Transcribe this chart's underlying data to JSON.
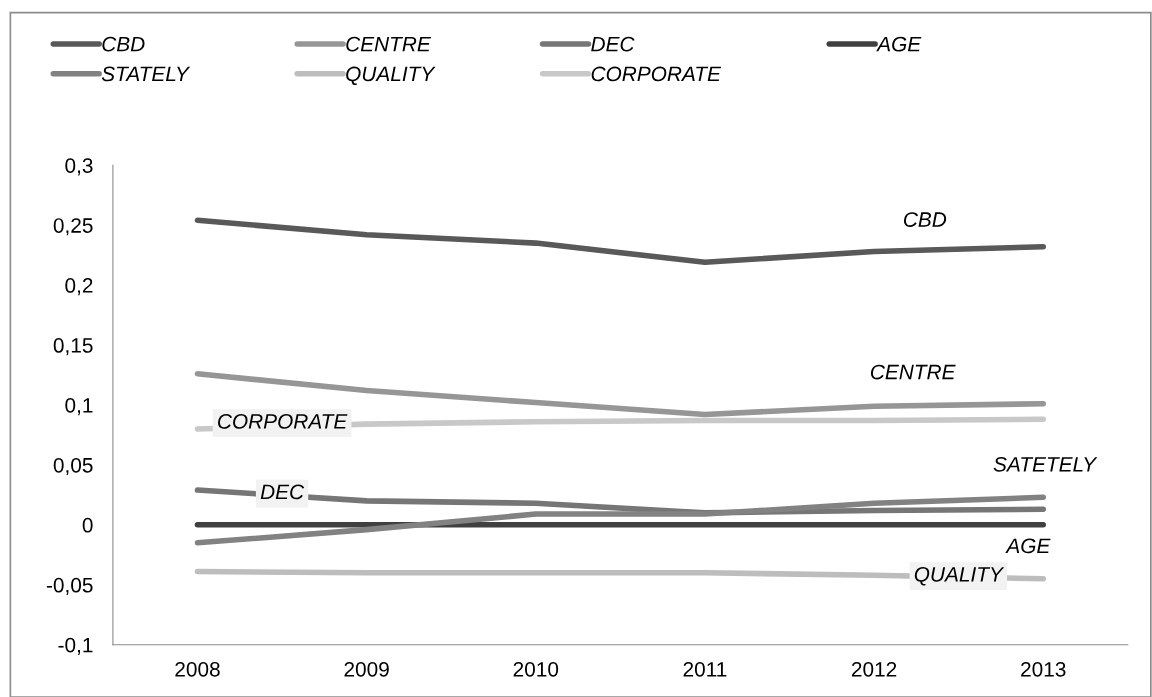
{
  "chart_data": {
    "type": "line",
    "categories": [
      "2008",
      "2009",
      "2010",
      "2011",
      "2012",
      "2013"
    ],
    "series": [
      {
        "name": "CBD",
        "color": "#595959",
        "values": [
          0.254,
          0.242,
          0.235,
          0.219,
          0.228,
          0.232
        ]
      },
      {
        "name": "CENTRE",
        "color": "#969696",
        "values": [
          0.126,
          0.112,
          0.102,
          0.092,
          0.099,
          0.101
        ]
      },
      {
        "name": "DEC",
        "color": "#767676",
        "values": [
          0.029,
          0.02,
          0.018,
          0.01,
          0.012,
          0.013
        ]
      },
      {
        "name": "AGE",
        "color": "#404040",
        "values": [
          0,
          0,
          0,
          0,
          0,
          0
        ]
      },
      {
        "name": "STATELY",
        "color": "#828282",
        "values": [
          -0.015,
          -0.004,
          0.009,
          0.009,
          0.018,
          0.023
        ]
      },
      {
        "name": "QUALITY",
        "color": "#bdbdbd",
        "values": [
          -0.039,
          -0.04,
          -0.04,
          -0.04,
          -0.042,
          -0.045
        ]
      },
      {
        "name": "CORPORATE",
        "color": "#c8c8c8",
        "values": [
          0.08,
          0.084,
          0.086,
          0.087,
          0.087,
          0.088
        ]
      }
    ],
    "ylim": [
      -0.1,
      0.3
    ],
    "yticks": [
      {
        "value": -0.1,
        "label": "-0,1"
      },
      {
        "value": -0.05,
        "label": "-0,05"
      },
      {
        "value": 0,
        "label": "0"
      },
      {
        "value": 0.05,
        "label": "0,05"
      },
      {
        "value": 0.1,
        "label": "0,1"
      },
      {
        "value": 0.15,
        "label": "0,15"
      },
      {
        "value": 0.2,
        "label": "0,2"
      },
      {
        "value": 0.25,
        "label": "0,25"
      },
      {
        "value": 0.3,
        "label": "0,3"
      }
    ],
    "annotations": [
      "CBD",
      "CENTRE",
      "CORPORATE",
      "DEC",
      "SATETELY",
      "AGE",
      "QUALITY"
    ],
    "grid": false,
    "legend": "top",
    "marker": "none",
    "line_style": "solid"
  }
}
